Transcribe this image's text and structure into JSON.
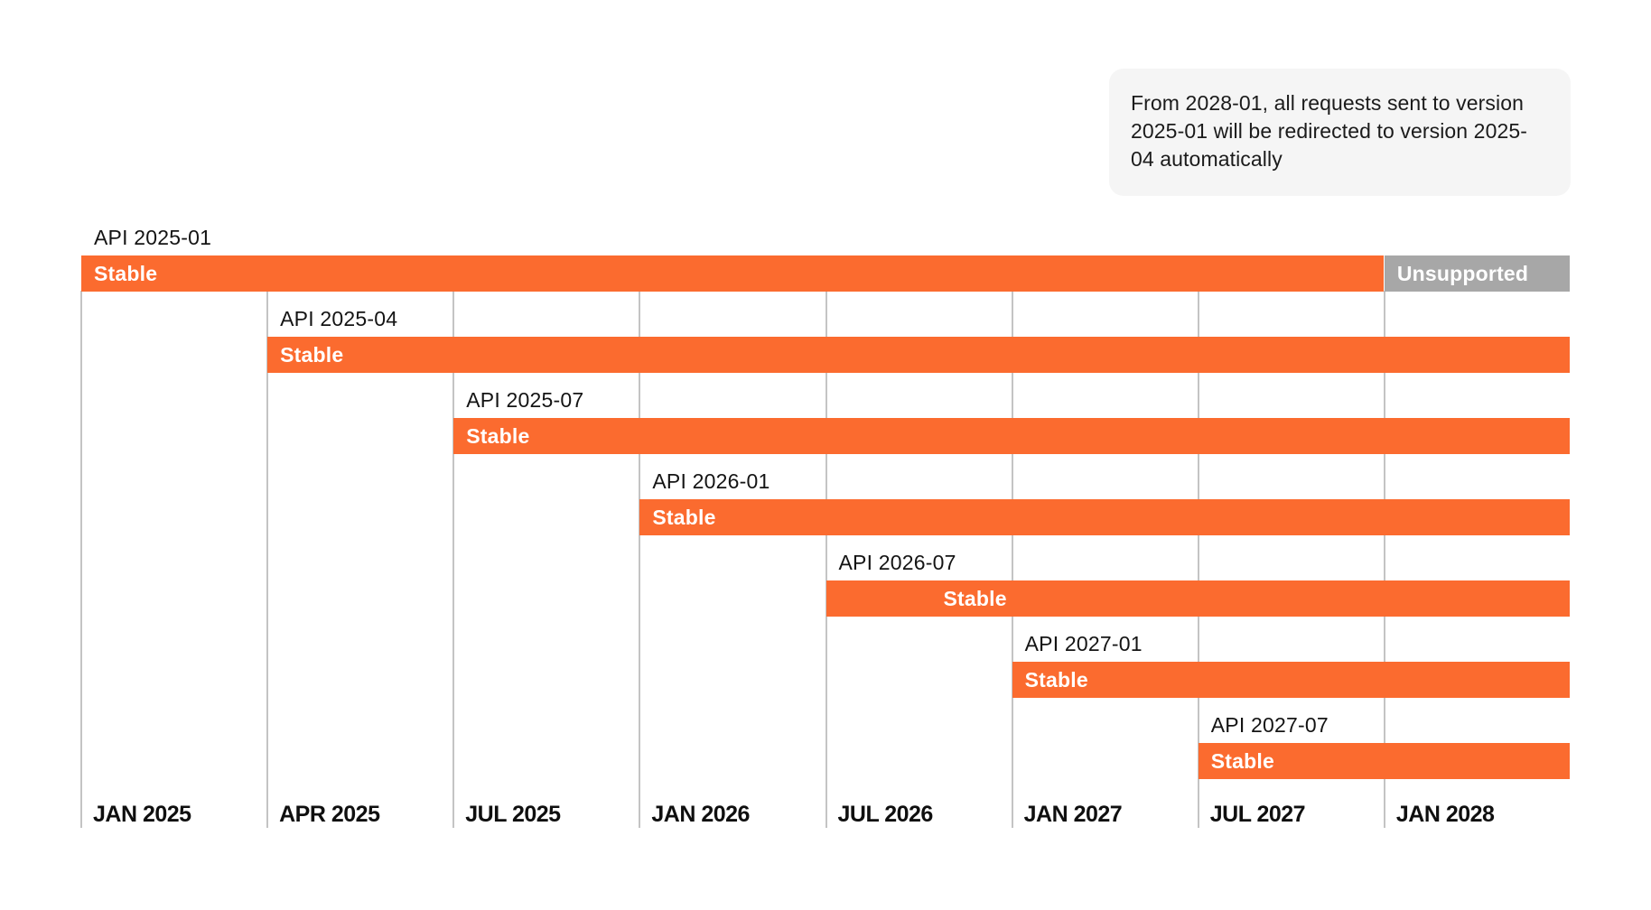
{
  "note": {
    "text": "From 2028-01, all requests sent to version 2025-01 will be redirected to version 2025-04 automatically"
  },
  "colors": {
    "stable": "#fb6b2f",
    "unsupported": "#a7a7a7",
    "gridline": "#c4c4c4",
    "note_background": "#f5f5f5",
    "text": "#1b1b1b"
  },
  "chart_data": {
    "type": "timeline",
    "title": "",
    "axis_ticks": [
      "JAN 2025",
      "APR 2025",
      "JUL 2025",
      "JAN 2026",
      "JUL 2026",
      "JAN 2027",
      "JUL 2027",
      "JAN 2028"
    ],
    "legend": "none",
    "grid": "vertical",
    "rows": [
      {
        "label": "API 2025-01",
        "segments": [
          {
            "label": "Stable",
            "status": "stable",
            "from_tick": 0,
            "to_tick": 7
          },
          {
            "label": "Unsupported",
            "status": "unsupported",
            "from_tick": 7,
            "to_tick": 8
          }
        ]
      },
      {
        "label": "API 2025-04",
        "segments": [
          {
            "label": "Stable",
            "status": "stable",
            "from_tick": 1,
            "to_tick": 8
          }
        ]
      },
      {
        "label": "API 2025-07",
        "segments": [
          {
            "label": "Stable",
            "status": "stable",
            "from_tick": 2,
            "to_tick": 8
          }
        ]
      },
      {
        "label": "API 2026-01",
        "segments": [
          {
            "label": "Stable",
            "status": "stable",
            "from_tick": 3,
            "to_tick": 8
          }
        ]
      },
      {
        "label": "API 2026-07",
        "segments": [
          {
            "label": "Stable",
            "status": "stable",
            "from_tick": 4,
            "to_tick": 8,
            "label_indent": 130
          }
        ]
      },
      {
        "label": "API 2027-01",
        "segments": [
          {
            "label": "Stable",
            "status": "stable",
            "from_tick": 5,
            "to_tick": 8
          }
        ]
      },
      {
        "label": "API 2027-07",
        "segments": [
          {
            "label": "Stable",
            "status": "stable",
            "from_tick": 6,
            "to_tick": 8
          }
        ]
      }
    ]
  }
}
